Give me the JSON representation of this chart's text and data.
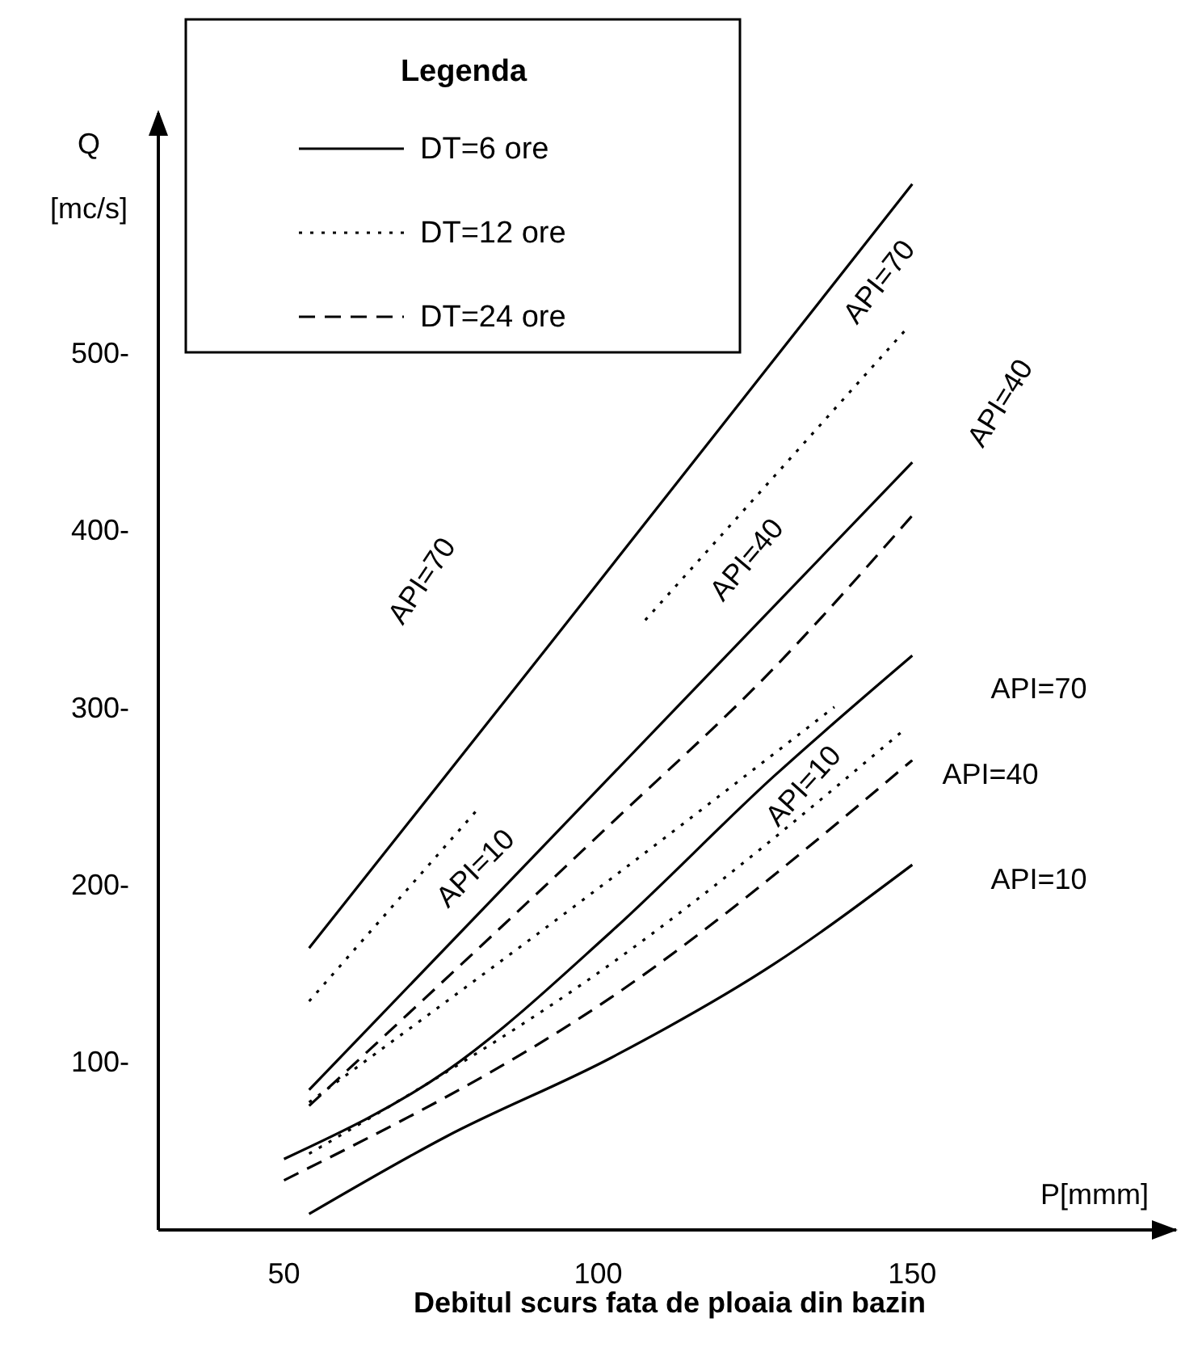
{
  "chart_data": {
    "type": "line",
    "title": "Debitul scurs fata de ploaia din bazin",
    "xlabel": "P[mmm]",
    "ylabel": "Q [mc/s]",
    "legend_title": "Legenda",
    "xlim": [
      30,
      192
    ],
    "xticks": [
      50,
      100,
      150
    ],
    "ylim": [
      5,
      635
    ],
    "yticks": [
      {
        "value": 100,
        "label": "100-"
      },
      {
        "value": 200,
        "label": "200-"
      },
      {
        "value": 300,
        "label": "300-"
      },
      {
        "value": 400,
        "label": "400-"
      },
      {
        "value": 500,
        "label": "500-"
      }
    ],
    "grid": false,
    "legend": "top",
    "marker": "none",
    "series": [
      {
        "name": "DT=6 ore",
        "color": "#000000",
        "line_style": "solid",
        "x": [
          54,
          92,
          150
        ],
        "values": [
          164,
          334,
          595
        ]
      },
      {
        "name": "DT=12 ore",
        "color": "#000000",
        "line_style": "dotted",
        "x": [
          54,
          81,
          95,
          107.5,
          149
        ],
        "values": [
          134,
          243,
          null,
          349,
          513
        ]
      },
      {
        "color": "#000000",
        "line_style": "solid",
        "x": [
          54,
          102,
          150
        ],
        "values": [
          84,
          261,
          438
        ]
      },
      {
        "name": "DT=24 ore",
        "color": "#000000",
        "line_style": "dashed",
        "x": [
          54,
          102,
          128,
          150
        ],
        "values": [
          75,
          234,
          322,
          408
        ]
      },
      {
        "color": "#000000",
        "line_style": "dotted",
        "x": [
          54,
          102,
          137.6
        ],
        "values": [
          77,
          203,
          300
        ]
      },
      {
        "color": "#000000",
        "line_style": "solid",
        "x": [
          50,
          76,
          102,
          128,
          150
        ],
        "values": [
          45,
          95,
          173,
          261,
          329
        ]
      },
      {
        "color": "#000000",
        "line_style": "dotted",
        "x": [
          54,
          102,
          149
        ],
        "values": [
          48,
          155,
          288
        ]
      },
      {
        "color": "#000000",
        "line_style": "dashed",
        "x": [
          50,
          102,
          150
        ],
        "values": [
          33,
          136,
          270
        ]
      },
      {
        "color": "#000000",
        "line_style": "solid",
        "x": [
          54,
          76,
          102,
          128,
          150
        ],
        "values": [
          14,
          58,
          102,
          155,
          211
        ]
      }
    ],
    "annotations": [
      "API=70",
      "API=70",
      "API=40",
      "API=40",
      "API=10",
      "API=10",
      "API=70",
      "API=40",
      "API=10"
    ]
  }
}
